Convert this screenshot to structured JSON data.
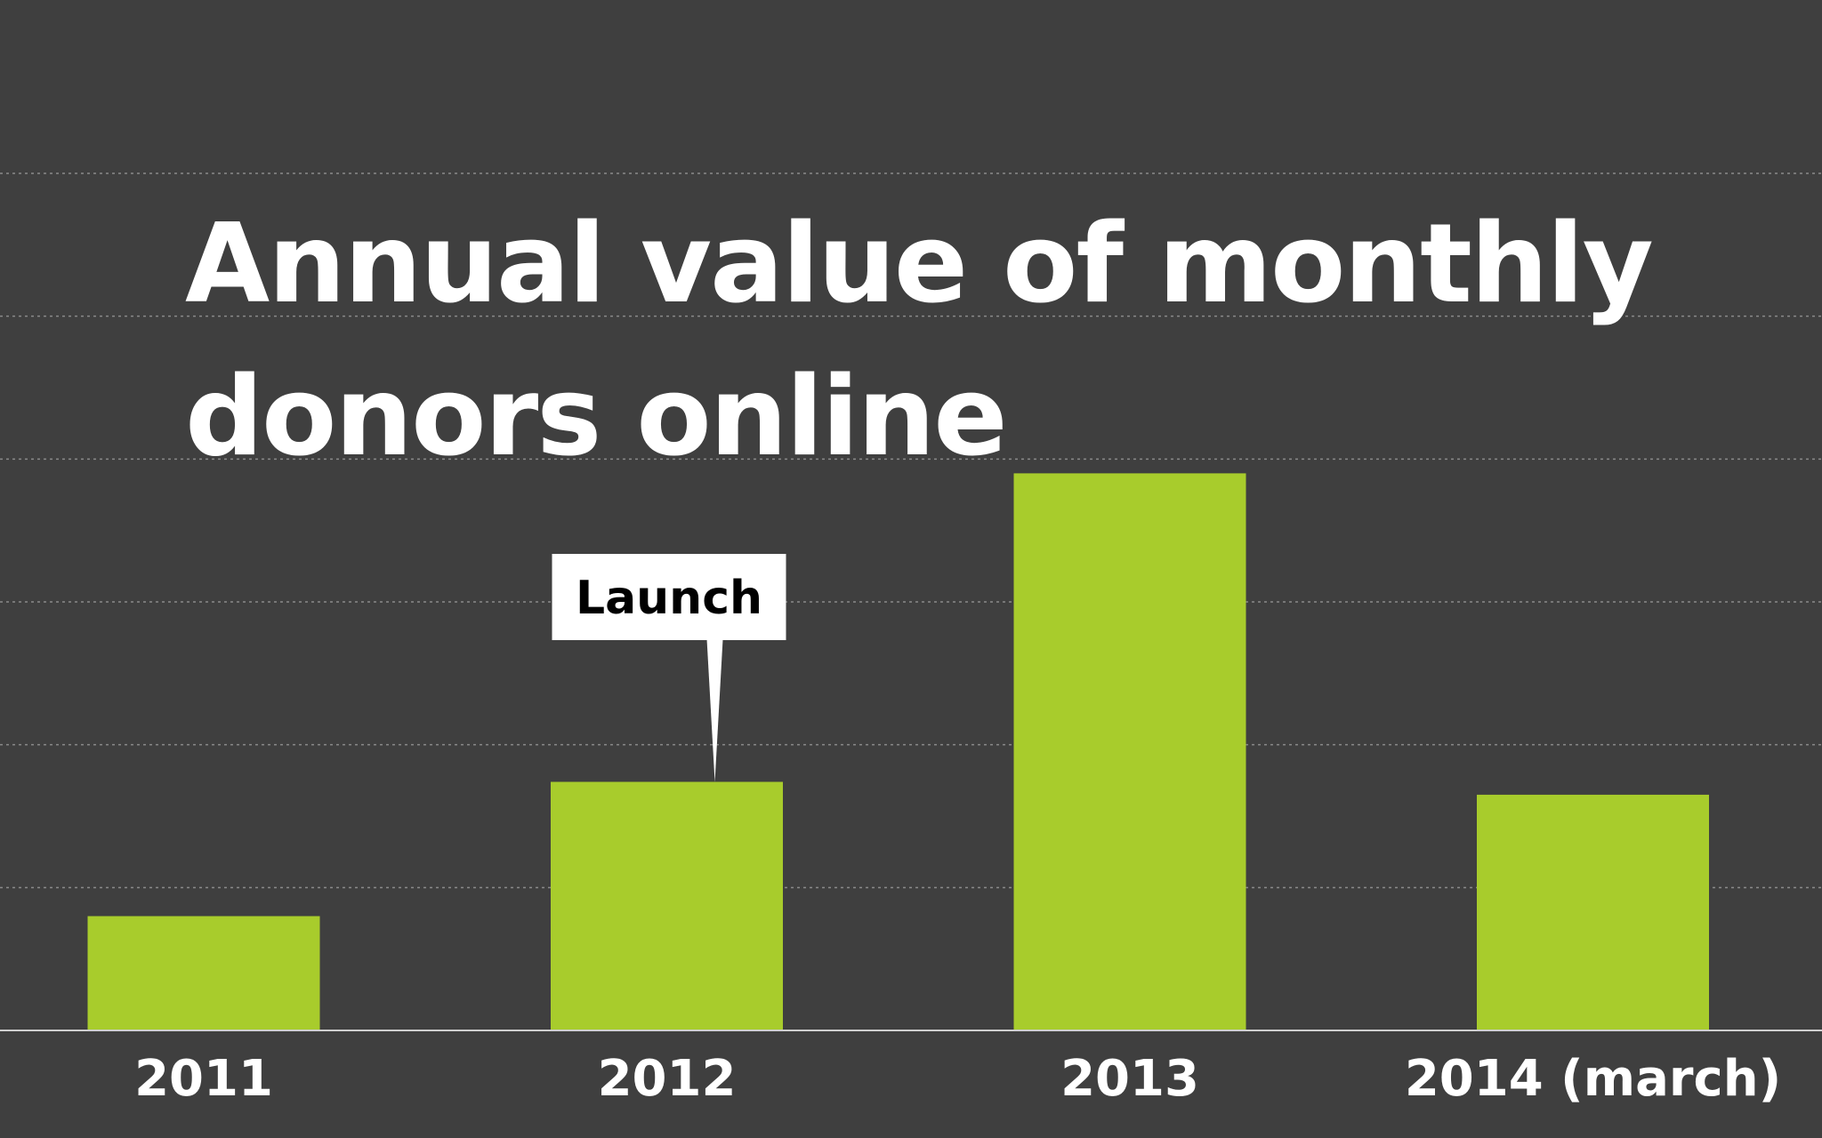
{
  "chart_data": {
    "type": "bar",
    "title": "Annual value of monthly donors online",
    "categories": [
      "2011",
      "2012",
      "2013",
      "2014 (march)"
    ],
    "values": [
      0.8,
      1.74,
      3.9,
      1.65
    ],
    "ylim": [
      0,
      6
    ],
    "grid": true,
    "annotations": [
      {
        "text": "Launch",
        "category": "2012"
      }
    ],
    "colors": {
      "background": "#3f3f3f",
      "bar": "#a8cc2c",
      "grid": "#8a8a8a",
      "axis": "#cfcfcf",
      "text": "#ffffff",
      "callout_bg": "#ffffff",
      "callout_text": "#000000"
    }
  }
}
